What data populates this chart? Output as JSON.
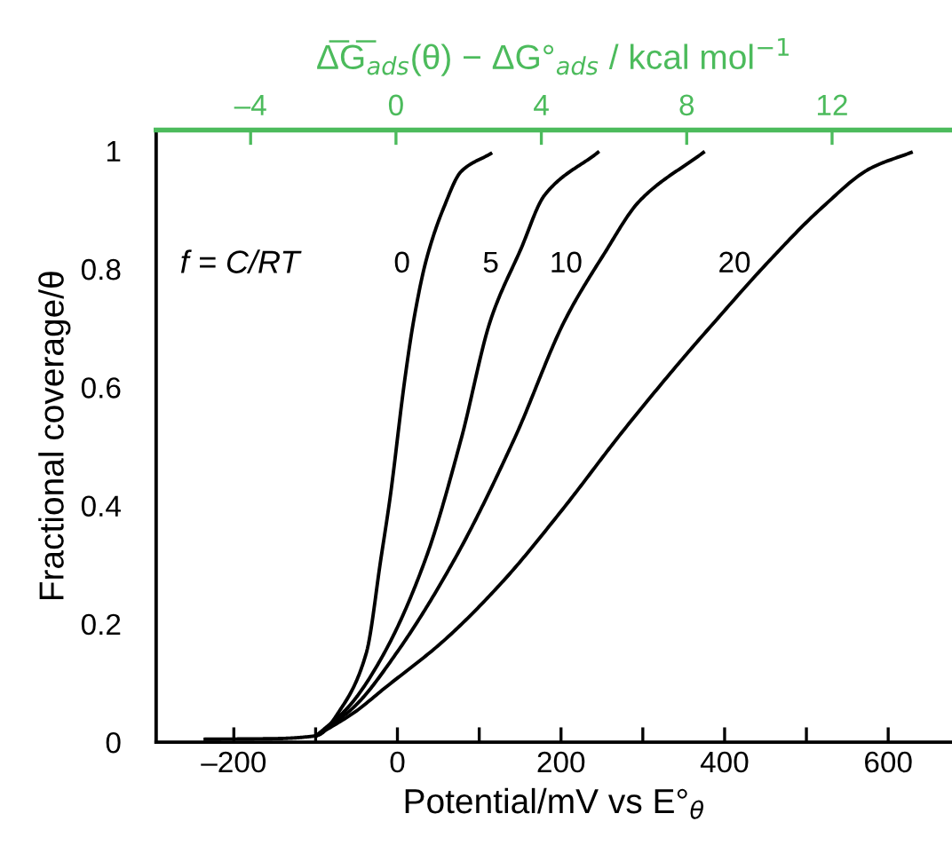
{
  "chart_data": {
    "type": "line",
    "xlabel": "Potential/mV vs E°$_{θ}$",
    "ylabel": "Fractional coverage/θ",
    "x2label": "Δ̅G̅$_{ads}$(θ) − ΔG°$_{ads}$ / kcal mol$^{−1}$",
    "xlim": [
      -295,
      678
    ],
    "xticks": [
      {
        "value": -200,
        "label": "–200"
      },
      {
        "value": -100,
        "label": null
      },
      0,
      {
        "value": 100,
        "label": null
      },
      200,
      {
        "value": 300,
        "label": null
      },
      400,
      {
        "value": 500,
        "label": null
      },
      600
    ],
    "x2lim": [
      -6.6,
      15.3
    ],
    "x2ticks": [
      {
        "value": -4,
        "label": "–4"
      },
      0,
      4,
      8,
      12
    ],
    "ylim": [
      0,
      1.035
    ],
    "yticks": [
      0,
      0.2,
      0.4,
      0.6,
      0.8,
      1
    ],
    "grid": false,
    "legend": false,
    "marker": "none",
    "line_style": "solid",
    "series": [
      {
        "name": "0",
        "color": "#000000",
        "x": [
          -235,
          -150,
          -99,
          -67,
          -38,
          -20,
          -9,
          9,
          20,
          35,
          57,
          78,
          114
        ],
        "values": [
          0.005,
          0.006,
          0.011,
          0.061,
          0.151,
          0.312,
          0.413,
          0.613,
          0.714,
          0.814,
          0.905,
          0.965,
          0.995
        ]
      },
      {
        "name": "5",
        "color": "#000000",
        "x": [
          -99,
          -59,
          -16,
          35,
          78,
          114,
          151,
          180,
          245
        ],
        "values": [
          0.011,
          0.061,
          0.151,
          0.312,
          0.513,
          0.714,
          0.834,
          0.925,
          0.997
        ]
      },
      {
        "name": "10",
        "color": "#000000",
        "x": [
          -99,
          -52,
          -1,
          71,
          143,
          205,
          252,
          296,
          374
        ],
        "values": [
          0.011,
          0.061,
          0.151,
          0.312,
          0.513,
          0.714,
          0.824,
          0.915,
          0.997
        ]
      },
      {
        "name": "20",
        "color": "#000000",
        "x": [
          -99,
          -52,
          -16,
          57,
          129,
          201,
          274,
          346,
          390,
          448,
          520,
          578,
          628
        ],
        "values": [
          0.011,
          0.051,
          0.091,
          0.172,
          0.272,
          0.392,
          0.523,
          0.644,
          0.714,
          0.804,
          0.905,
          0.97,
          0.997
        ]
      }
    ],
    "annotations": [
      "f = C/RT"
    ]
  }
}
